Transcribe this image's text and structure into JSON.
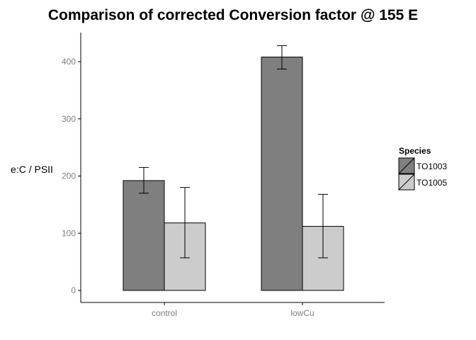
{
  "chart_data": {
    "type": "bar",
    "title": "Comparison of corrected Conversion factor @ 155 E",
    "xlabel": "",
    "ylabel": "e:C / PSII",
    "categories": [
      "control",
      "lowCu"
    ],
    "ylim": [
      -20,
      450
    ],
    "yticks": [
      0,
      100,
      200,
      300,
      400
    ],
    "grid": false,
    "legend": {
      "title": "Species",
      "position": "right"
    },
    "series": [
      {
        "name": "TO1003",
        "color": "#7f7f7f",
        "values": [
          192,
          408
        ],
        "error_low": [
          170,
          387
        ],
        "error_high": [
          215,
          428
        ]
      },
      {
        "name": "TO1005",
        "color": "#cccccc",
        "values": [
          118,
          112
        ],
        "error_low": [
          57,
          57
        ],
        "error_high": [
          180,
          168
        ]
      }
    ]
  }
}
